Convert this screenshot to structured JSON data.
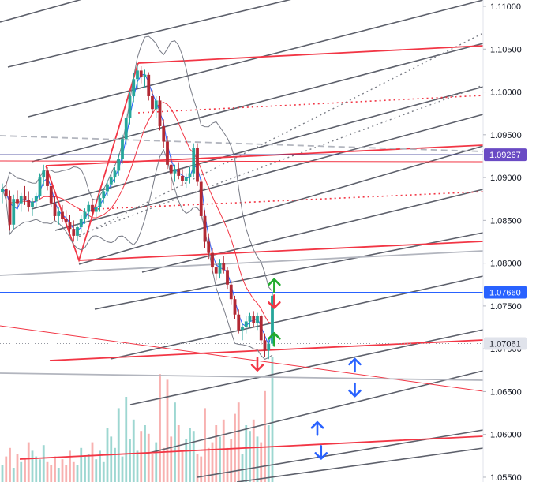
{
  "chart_data": {
    "type": "candlestick",
    "y_axis": {
      "range": [
        1.0548,
        1.1108
      ],
      "ticks": [
        "1.11000",
        "1.10500",
        "1.10000",
        "1.09500",
        "1.09000",
        "1.08500",
        "1.08000",
        "1.07500",
        "1.07000",
        "1.06500",
        "1.06000",
        "1.05500"
      ]
    },
    "price_badges": [
      {
        "label": "1.09267",
        "value": 1.09267,
        "color": "#6a4bc4"
      },
      {
        "label": "1.07660",
        "value": 1.0766,
        "color": "#2962ff"
      },
      {
        "label": "1.07061",
        "value": 1.07061,
        "color": "#e0e3eb"
      }
    ],
    "candles": [
      [
        1.0883,
        1.0893,
        1.087,
        1.0887
      ],
      [
        1.0887,
        1.0895,
        1.0872,
        1.0878
      ],
      [
        1.0878,
        1.0885,
        1.0838,
        1.0845
      ],
      [
        1.0845,
        1.088,
        1.084,
        1.0875
      ],
      [
        1.0875,
        1.0885,
        1.0865,
        1.087
      ],
      [
        1.087,
        1.0882,
        1.086,
        1.0878
      ],
      [
        1.0878,
        1.089,
        1.0868,
        1.0874
      ],
      [
        1.0874,
        1.0884,
        1.086,
        1.0866
      ],
      [
        1.0866,
        1.0876,
        1.0855,
        1.0872
      ],
      [
        1.0872,
        1.0882,
        1.0865,
        1.0878
      ],
      [
        1.0878,
        1.0905,
        1.0875,
        1.09
      ],
      [
        1.09,
        1.0915,
        1.089,
        1.0908
      ],
      [
        1.0908,
        1.0912,
        1.0885,
        1.089
      ],
      [
        1.089,
        1.0895,
        1.0865,
        1.087
      ],
      [
        1.087,
        1.0878,
        1.085,
        1.0855
      ],
      [
        1.0855,
        1.0865,
        1.0845,
        1.086
      ],
      [
        1.086,
        1.0868,
        1.0848,
        1.0852
      ],
      [
        1.0852,
        1.0862,
        1.0842,
        1.0848
      ],
      [
        1.0848,
        1.0856,
        1.0835,
        1.084
      ],
      [
        1.084,
        1.085,
        1.0825,
        1.0832
      ],
      [
        1.0832,
        1.0846,
        1.0826,
        1.0842
      ],
      [
        1.0842,
        1.0856,
        1.0836,
        1.0852
      ],
      [
        1.0852,
        1.0864,
        1.0846,
        1.086
      ],
      [
        1.086,
        1.0872,
        1.0852,
        1.0868
      ],
      [
        1.0868,
        1.0875,
        1.0855,
        1.086
      ],
      [
        1.086,
        1.087,
        1.0852,
        1.0866
      ],
      [
        1.0866,
        1.088,
        1.086,
        1.0876
      ],
      [
        1.0876,
        1.0888,
        1.087,
        1.0884
      ],
      [
        1.0884,
        1.0896,
        1.0878,
        1.0892
      ],
      [
        1.0892,
        1.0904,
        1.0886,
        1.09
      ],
      [
        1.09,
        1.0912,
        1.0894,
        1.0908
      ],
      [
        1.0908,
        1.0928,
        1.0902,
        1.0922
      ],
      [
        1.0922,
        1.095,
        1.0916,
        1.0945
      ],
      [
        1.0945,
        1.0975,
        1.0938,
        1.097
      ],
      [
        1.097,
        1.1,
        1.0962,
        1.0995
      ],
      [
        1.0995,
        1.1022,
        1.0988,
        1.1015
      ],
      [
        1.1015,
        1.1032,
        1.1005,
        1.1025
      ],
      [
        1.1025,
        1.103,
        1.101,
        1.1018
      ],
      [
        1.1018,
        1.1026,
        1.1005,
        1.102
      ],
      [
        1.102,
        1.1023,
        1.099,
        1.0995
      ],
      [
        1.0995,
        1.1002,
        1.0975,
        1.098
      ],
      [
        1.098,
        1.0995,
        1.097,
        1.099
      ],
      [
        1.099,
        1.0995,
        1.0955,
        1.096
      ],
      [
        1.096,
        1.0968,
        1.0935,
        1.0942
      ],
      [
        1.0942,
        1.0948,
        1.091,
        1.0915
      ],
      [
        1.0915,
        1.0925,
        1.0885,
        1.0905
      ],
      [
        1.0905,
        1.0915,
        1.0895,
        1.091
      ],
      [
        1.091,
        1.0918,
        1.0898,
        1.0902
      ],
      [
        1.0902,
        1.091,
        1.089,
        1.0896
      ],
      [
        1.0896,
        1.0905,
        1.0888,
        1.09
      ],
      [
        1.09,
        1.0912,
        1.0893,
        1.0905
      ],
      [
        1.0905,
        1.094,
        1.09,
        1.0935
      ],
      [
        1.0935,
        1.094,
        1.089,
        1.0895
      ],
      [
        1.0895,
        1.0898,
        1.085,
        1.0855
      ],
      [
        1.0855,
        1.0862,
        1.0818,
        1.0825
      ],
      [
        1.0825,
        1.0835,
        1.0805,
        1.0812
      ],
      [
        1.0812,
        1.0818,
        1.0788,
        1.0795
      ],
      [
        1.0795,
        1.08,
        1.078,
        1.0788
      ],
      [
        1.0788,
        1.0805,
        1.0782,
        1.08
      ],
      [
        1.08,
        1.0808,
        1.0788,
        1.0792
      ],
      [
        1.0792,
        1.0796,
        1.077,
        1.0775
      ],
      [
        1.0775,
        1.078,
        1.0752,
        1.0758
      ],
      [
        1.0758,
        1.0762,
        1.0735,
        1.074
      ],
      [
        1.074,
        1.0746,
        1.0718,
        1.0722
      ],
      [
        1.0722,
        1.073,
        1.071,
        1.0725
      ],
      [
        1.0725,
        1.0738,
        1.0718,
        1.0732
      ],
      [
        1.0732,
        1.0742,
        1.0726,
        1.0738
      ],
      [
        1.0738,
        1.0744,
        1.0725,
        1.073
      ],
      [
        1.073,
        1.0742,
        1.0722,
        1.0738
      ],
      [
        1.0738,
        1.074,
        1.0705,
        1.071
      ],
      [
        1.071,
        1.0718,
        1.069,
        1.0698
      ],
      [
        1.0698,
        1.0712,
        1.0688,
        1.0706
      ],
      [
        1.0706,
        1.0766,
        1.0704,
        1.0762
      ]
    ],
    "volume": [
      30,
      45,
      60,
      25,
      50,
      35,
      40,
      70,
      55,
      45,
      40,
      65,
      35,
      30,
      45,
      25,
      40,
      30,
      55,
      35,
      30,
      60,
      45,
      50,
      70,
      40,
      55,
      35,
      95,
      80,
      60,
      130,
      45,
      150,
      75,
      110,
      55,
      90,
      100,
      85,
      50,
      70,
      190,
      60,
      180,
      80,
      140,
      100,
      55,
      75,
      95,
      90,
      50,
      45,
      130,
      60,
      70,
      100,
      80,
      110,
      60,
      75,
      120,
      140,
      50,
      100,
      90,
      110,
      80,
      70,
      160,
      100,
      220
    ]
  },
  "annotations": {
    "arrows": [
      {
        "direction": "up",
        "color": "#22ab2f",
        "price": 1.0773,
        "bar": 72.5
      },
      {
        "direction": "down",
        "color": "#f23645",
        "price": 1.0756,
        "bar": 72.5
      },
      {
        "direction": "up",
        "color": "#22ab2f",
        "price": 1.071,
        "bar": 72.5
      },
      {
        "direction": "down",
        "color": "#f23645",
        "price": 1.0683,
        "bar": 68
      },
      {
        "direction": "up",
        "color": "#2962ff",
        "price": 1.068,
        "bar": 94
      },
      {
        "direction": "down",
        "color": "#2962ff",
        "price": 1.0653,
        "bar": 94
      },
      {
        "direction": "up",
        "color": "#2962ff",
        "price": 1.0606,
        "bar": 84
      },
      {
        "direction": "down",
        "color": "#2962ff",
        "price": 1.058,
        "bar": 85
      }
    ]
  }
}
